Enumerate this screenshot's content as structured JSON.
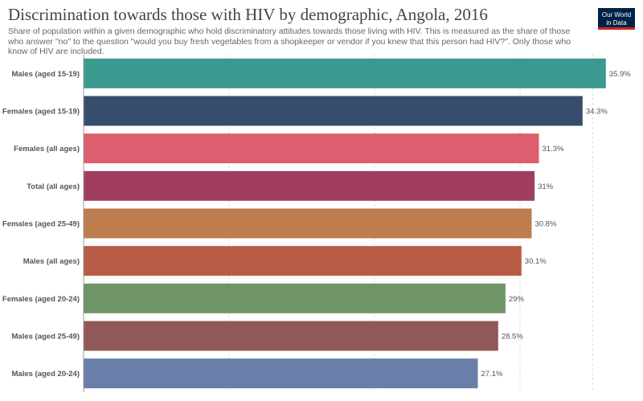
{
  "title": "Discrimination towards those with HIV by demographic, Angola, 2016",
  "subtitle": "Share of population within a given demographic who hold discriminatory attitudes towards those living with HIV. This is measured as the share of those who answer \"no\" to the question \"would you buy fresh vegetables from a shopkeeper or vendor if you knew that this person had HIV?\". Only those who know of HIV are included.",
  "logo": {
    "line1": "Our World",
    "line2": "in Data",
    "bg_color": "#002147",
    "accent_color": "#ce261e"
  },
  "chart_data": {
    "type": "bar",
    "orientation": "horizontal",
    "title": "Discrimination towards those with HIV by demographic, Angola, 2016",
    "xlabel": "",
    "ylabel": "",
    "xlim": [
      0,
      36
    ],
    "grid": true,
    "value_suffix": "%",
    "categories": [
      "Males (aged 15-19)",
      "Females (aged 15-19)",
      "Females (all ages)",
      "Total (all ages)",
      "Females (aged 25-49)",
      "Males (all ages)",
      "Females (aged 20-24)",
      "Males (aged 25-49)",
      "Males (aged 20-24)"
    ],
    "values": [
      35.9,
      34.3,
      31.3,
      31,
      30.8,
      30.1,
      29,
      28.5,
      27.1
    ],
    "value_labels": [
      "35.9%",
      "34.3%",
      "31.3%",
      "31%",
      "30.8%",
      "30.1%",
      "29%",
      "28.5%",
      "27.1%"
    ],
    "colors": [
      "#3b9a8f",
      "#364d6e",
      "#db5f6e",
      "#a13d61",
      "#bd7d4f",
      "#b85c46",
      "#6f9465",
      "#925859",
      "#697ea8"
    ]
  }
}
